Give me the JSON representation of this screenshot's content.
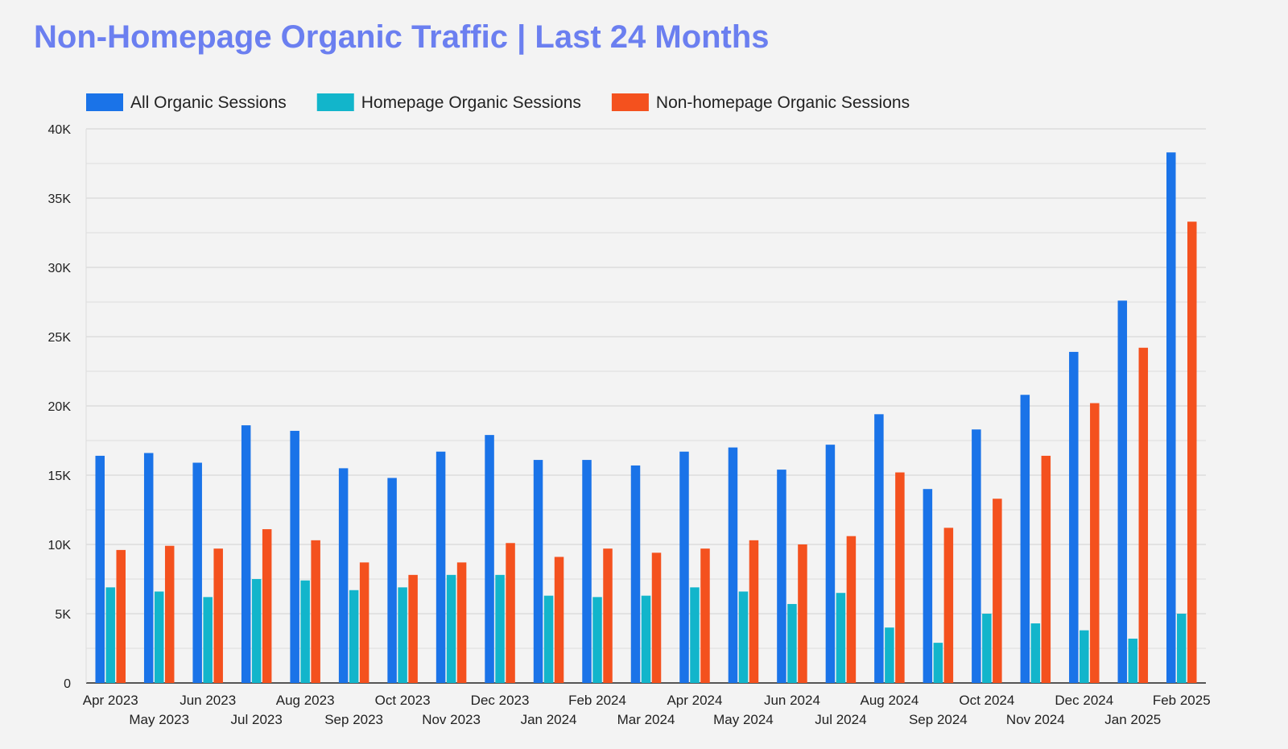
{
  "chart_data": {
    "type": "bar",
    "title": "Non-Homepage Organic Traffic | Last 24 Months",
    "xlabel": "",
    "ylabel": "",
    "ylim": [
      0,
      40000
    ],
    "yticks": [
      0,
      5000,
      10000,
      15000,
      20000,
      25000,
      30000,
      35000,
      40000
    ],
    "ytick_labels": [
      "0",
      "5K",
      "10K",
      "15K",
      "20K",
      "25K",
      "30K",
      "35K",
      "40K"
    ],
    "legend_position": "top-left",
    "grid": true,
    "categories": [
      "Apr 2023",
      "May 2023",
      "Jun 2023",
      "Jul 2023",
      "Aug 2023",
      "Sep 2023",
      "Oct 2023",
      "Nov 2023",
      "Dec 2023",
      "Jan 2024",
      "Feb 2024",
      "Mar 2024",
      "Apr 2024",
      "May 2024",
      "Jun 2024",
      "Jul 2024",
      "Aug 2024",
      "Sep 2024",
      "Oct 2024",
      "Nov 2024",
      "Dec 2024",
      "Jan 2025",
      "Feb 2025"
    ],
    "series": [
      {
        "name": "All Organic Sessions",
        "color": "#1a73e8",
        "values": [
          16400,
          16600,
          15900,
          18600,
          18200,
          15500,
          14800,
          16700,
          17900,
          16100,
          16100,
          15700,
          16700,
          17000,
          15400,
          17200,
          19400,
          14000,
          18300,
          20800,
          23900,
          27600,
          38300
        ]
      },
      {
        "name": "Homepage Organic Sessions",
        "color": "#12b5cb",
        "values": [
          6900,
          6600,
          6200,
          7500,
          7400,
          6700,
          6900,
          7800,
          7800,
          6300,
          6200,
          6300,
          6900,
          6600,
          5700,
          6500,
          4000,
          2900,
          5000,
          4300,
          3800,
          3200,
          5000
        ]
      },
      {
        "name": "Non-homepage Organic Sessions",
        "color": "#f4511e",
        "values": [
          9600,
          9900,
          9700,
          11100,
          10300,
          8700,
          7800,
          8700,
          10100,
          9100,
          9700,
          9400,
          9700,
          10300,
          10000,
          10600,
          15200,
          11200,
          13300,
          16400,
          20200,
          24200,
          33300
        ]
      }
    ]
  }
}
